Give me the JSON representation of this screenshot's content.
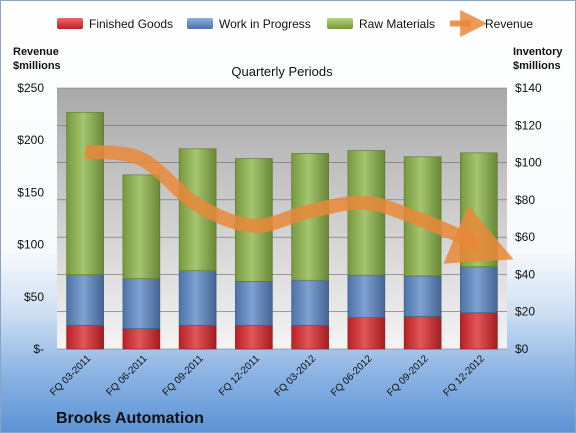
{
  "colors": {
    "finished_goods": "#d9262b",
    "work_in_progress": "#5b86c4",
    "raw_materials": "#8cb448",
    "revenue": "#e98838",
    "plot_top": "#a9a9a9",
    "plot_bottom": "#f4f4f4"
  },
  "company": "Brooks Automation",
  "chart_data": {
    "type": "bar",
    "stacked": true,
    "title": "Quarterly Periods",
    "categories": [
      "FQ 03-2011",
      "FQ 06-2011",
      "FQ 09-2011",
      "FQ 12-2011",
      "FQ 03-2012",
      "FQ 06-2012",
      "FQ 09-2012",
      "FQ 12-2012"
    ],
    "series": [
      {
        "name": "Finished Goods",
        "axis": "right",
        "values": [
          12.6,
          10.9,
          12.6,
          12.6,
          12.6,
          16.8,
          17.4,
          19.4
        ]
      },
      {
        "name": "Work in Progress",
        "axis": "right",
        "values": [
          27.2,
          26.8,
          29.4,
          23.7,
          24.3,
          22.8,
          21.8,
          24.7
        ]
      },
      {
        "name": "Raw Materials",
        "axis": "right",
        "values": [
          87.2,
          55.7,
          65.4,
          65.9,
          68.0,
          66.9,
          63.9,
          61.1
        ]
      },
      {
        "name": "Revenue",
        "axis": "left",
        "type": "line",
        "values": [
          189,
          182,
          138,
          118,
          132,
          140,
          123,
          100
        ]
      }
    ],
    "left_axis": {
      "label_line1": "Revenue",
      "label_line2": "$millions",
      "ticks": [
        "$-",
        "$50",
        "$100",
        "$150",
        "$200",
        "$250"
      ],
      "ylim": [
        0,
        250
      ]
    },
    "right_axis": {
      "label_line1": "Inventory",
      "label_line2": "$millions",
      "ticks": [
        "$0",
        "$20",
        "$40",
        "$60",
        "$80",
        "$100",
        "$120",
        "$140"
      ],
      "ylim": [
        0,
        140
      ]
    },
    "grid": true,
    "legend_position": "top"
  }
}
